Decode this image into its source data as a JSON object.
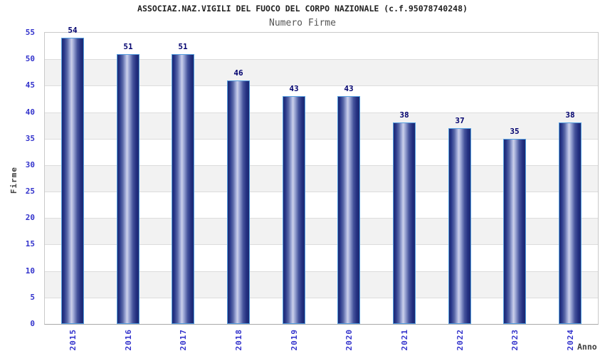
{
  "chart_data": {
    "type": "bar",
    "title": "ASSOCIAZ.NAZ.VIGILI DEL FUOCO DEL CORPO NAZIONALE (c.f.95078740248)",
    "subtitle": "Numero Firme",
    "xlabel": "Anno",
    "ylabel": "Firme",
    "categories": [
      "2015",
      "2016",
      "2017",
      "2018",
      "2019",
      "2020",
      "2021",
      "2022",
      "2023",
      "2024"
    ],
    "values": [
      54,
      51,
      51,
      46,
      43,
      43,
      38,
      37,
      35,
      38
    ],
    "ylim": [
      0,
      55
    ],
    "ytick_step": 5,
    "yticks": [
      0,
      5,
      10,
      15,
      20,
      25,
      30,
      35,
      40,
      45,
      50,
      55
    ],
    "grid": "horizontal-bands",
    "legend": false,
    "colors": {
      "bar_edge": "#1b2971",
      "bar_mid": "#28378a",
      "bar_light_center": "#ccd1ea",
      "bar_border": "#569fe0",
      "tick_label": "#3333cc",
      "value_label": "#00006e",
      "title": "#222222",
      "subtitle": "#555555",
      "axis_title": "#404040",
      "band_gray": "#f2f2f2",
      "band_white": "#ffffff",
      "gridline": "#dcdcdc",
      "plot_border": "#c9c9c9",
      "baseline": "#a9a9a9"
    }
  }
}
